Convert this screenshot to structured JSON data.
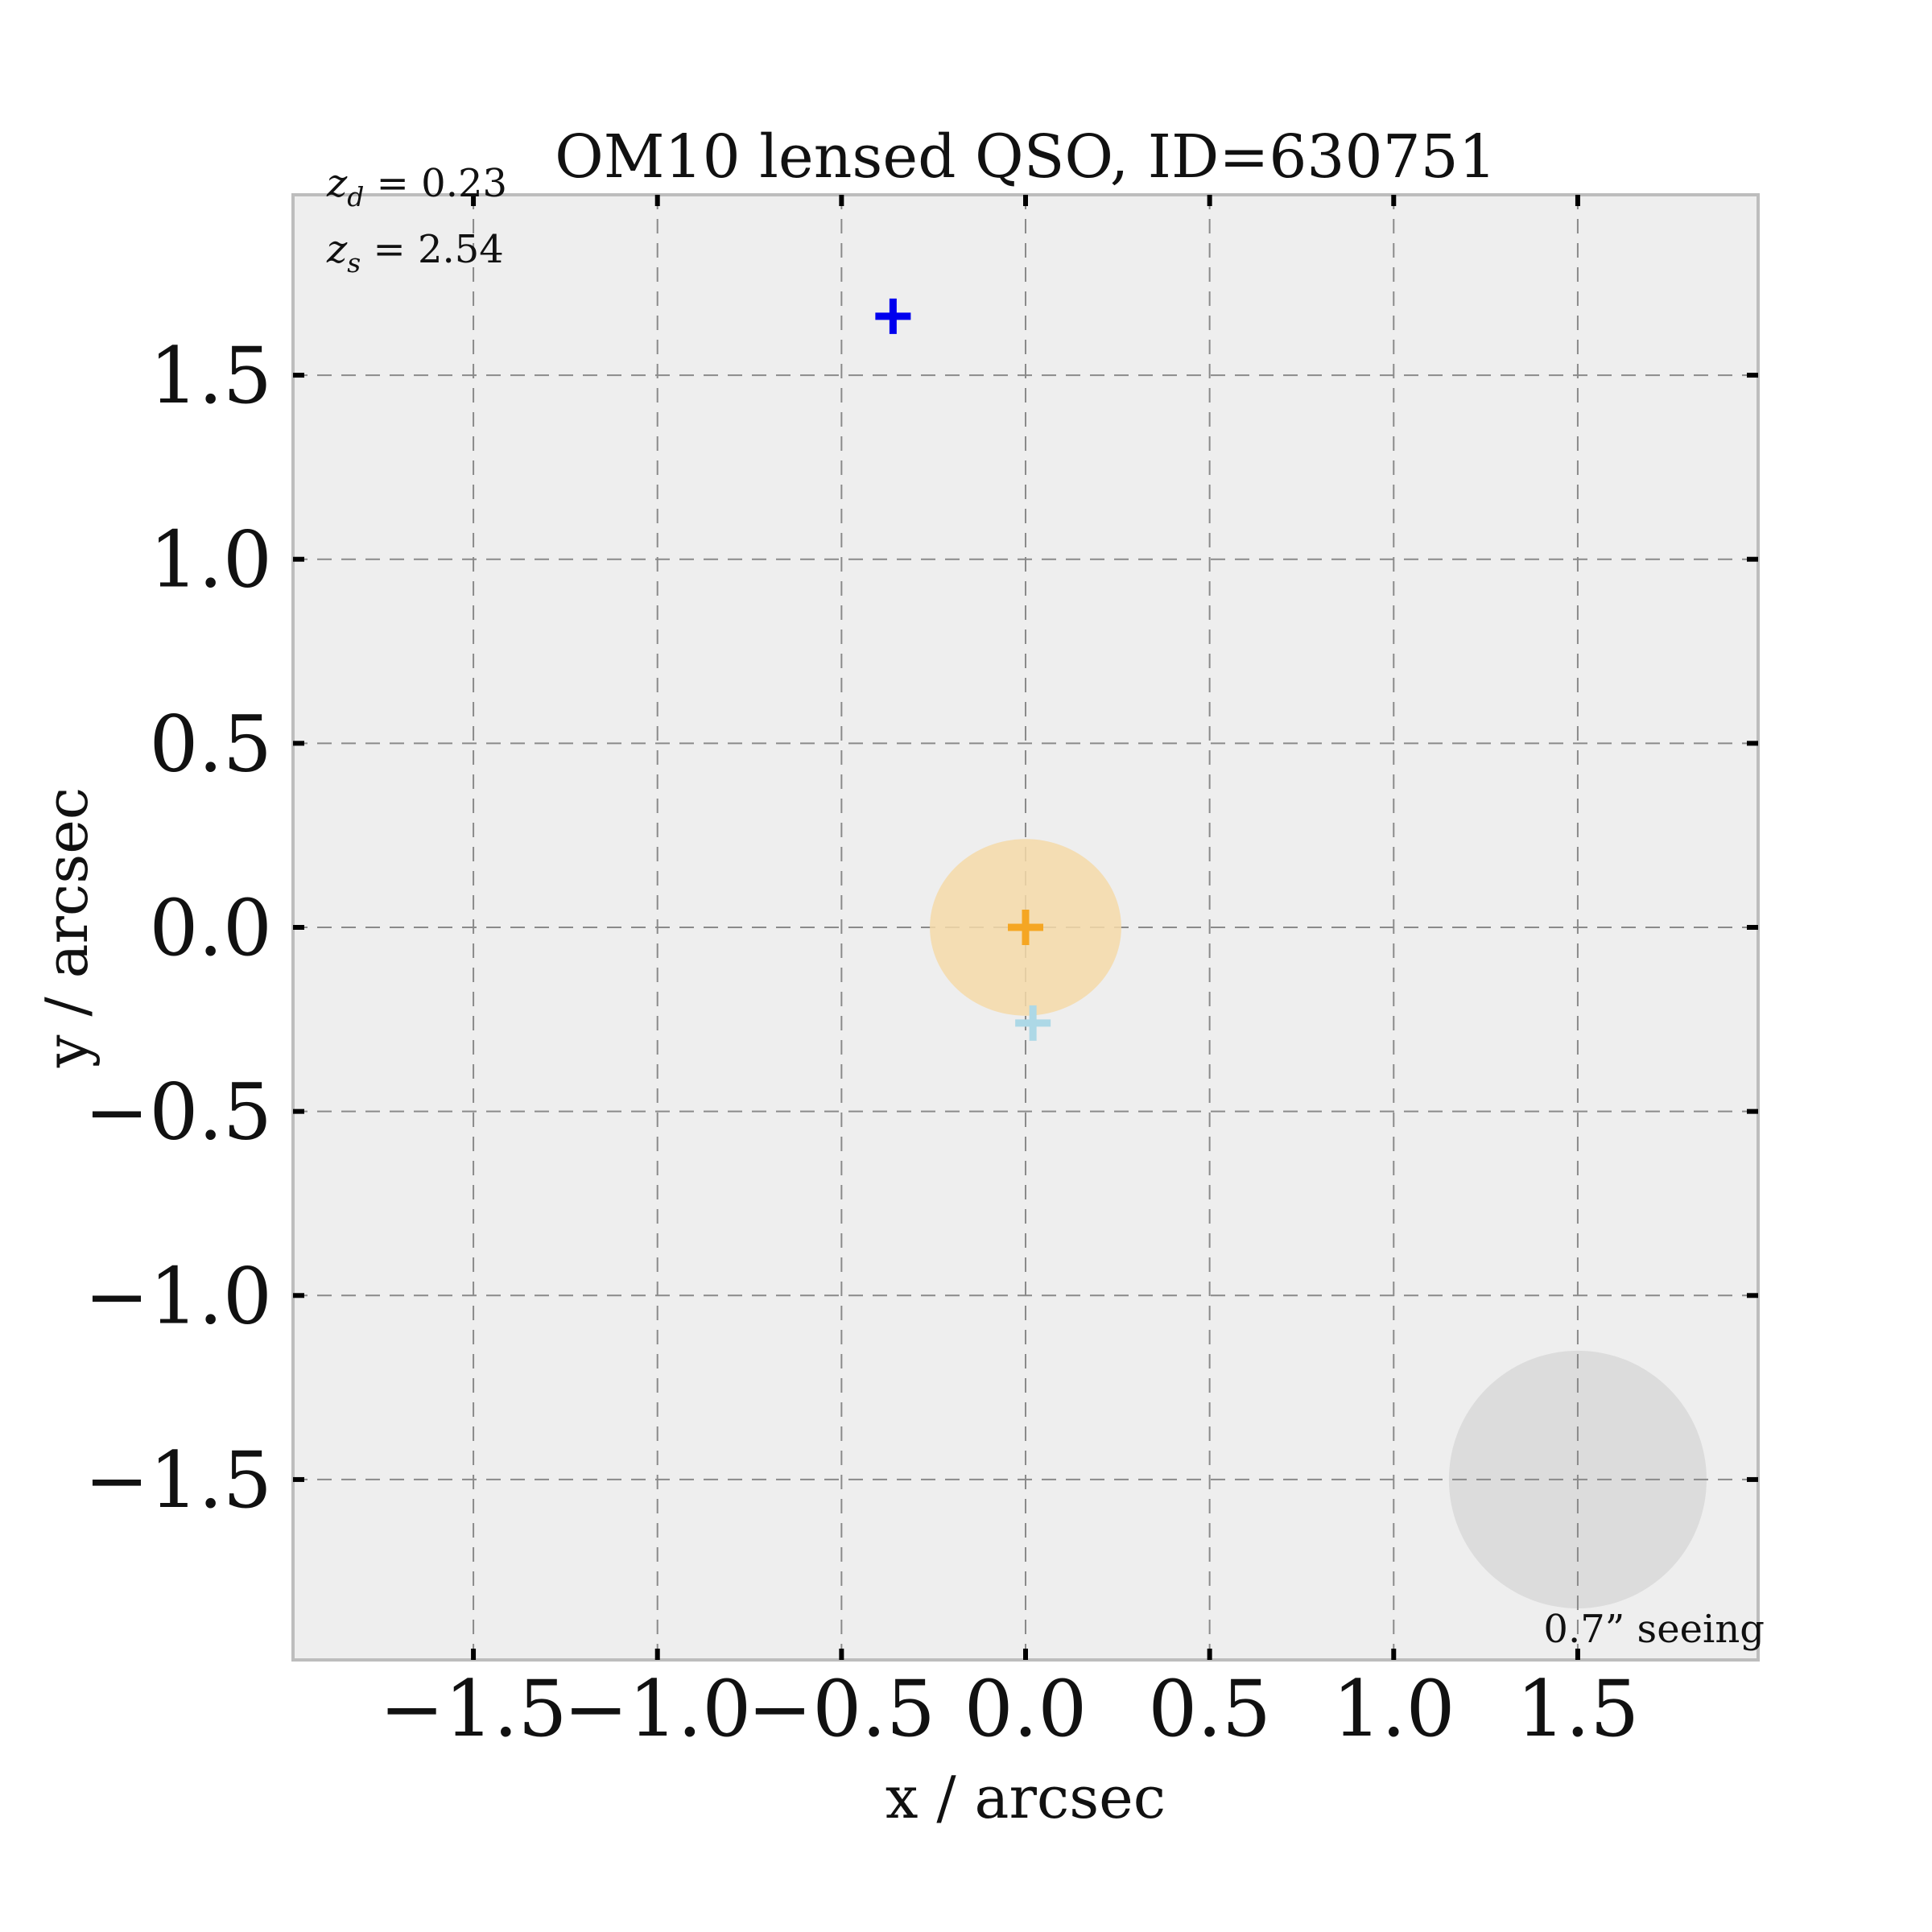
{
  "chart_data": {
    "type": "scatter",
    "title": "OM10 lensed QSO, ID=630751",
    "xlabel": "x / arcsec",
    "ylabel": "y / arcsec",
    "xlim": [
      -1.99,
      1.99
    ],
    "ylim": [
      -1.99,
      1.99
    ],
    "xticks": [
      -1.5,
      -1.0,
      -0.5,
      0.0,
      0.5,
      1.0,
      1.5
    ],
    "yticks": [
      -1.5,
      -1.0,
      -0.5,
      0.0,
      0.5,
      1.0,
      1.5
    ],
    "xtick_labels": [
      "−1.5",
      "−1.0",
      "−0.5",
      "0.0",
      "0.5",
      "1.0",
      "1.5"
    ],
    "ytick_labels": [
      "−1.5",
      "−1.0",
      "−0.5",
      "0.0",
      "0.5",
      "1.0",
      "1.5"
    ],
    "grid": true,
    "annotations": {
      "zd": {
        "symbol": "z",
        "subscript": "d",
        "text": " = 0.23"
      },
      "zs": {
        "symbol": "z",
        "subscript": "s",
        "text": " = 2.54"
      },
      "seeing": "0.7” seeing"
    },
    "lens_galaxy": {
      "x": 0.0,
      "y": 0.0,
      "rx": 0.26,
      "ry": 0.24,
      "color": "#f4d9a8"
    },
    "seeing_disk": {
      "x": 1.5,
      "y": -1.5,
      "diameter": 0.7,
      "color": "#dcdcdc"
    },
    "points": [
      {
        "x": -0.36,
        "y": 1.66,
        "color": "#0000ee",
        "alpha": 1.0
      },
      {
        "x": 0.0,
        "y": 0.0,
        "color": "#f5a623",
        "alpha": 1.0
      },
      {
        "x": 0.02,
        "y": -0.26,
        "color": "#add8e6",
        "alpha": 1.0
      }
    ]
  }
}
